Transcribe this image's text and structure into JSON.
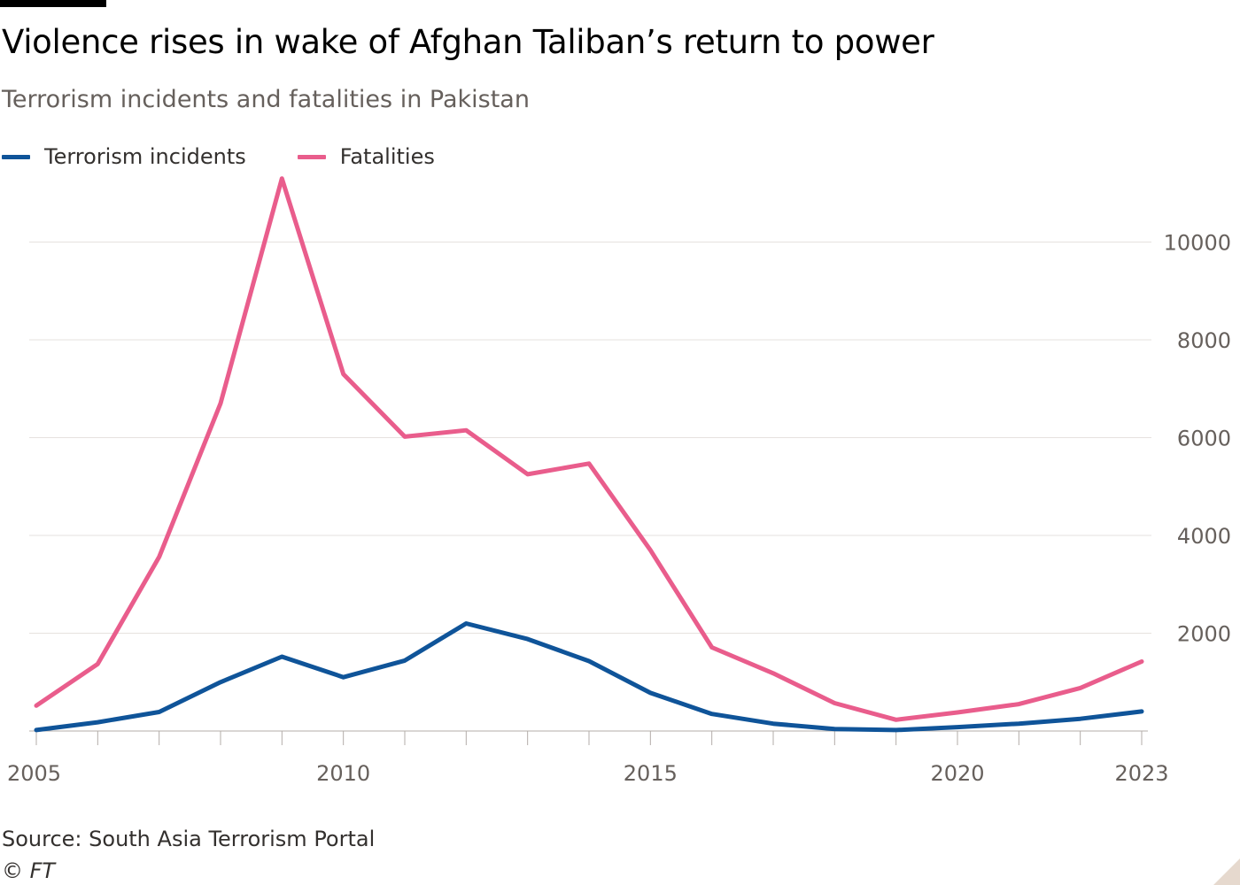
{
  "header": {
    "title": "Violence rises in wake of Afghan Taliban’s return to power",
    "subtitle": "Terrorism incidents and fatalities in Pakistan"
  },
  "legend": [
    {
      "label": "Terrorism incidents",
      "color": "#0f5499"
    },
    {
      "label": "Fatalities",
      "color": "#e95d8c"
    }
  ],
  "footer": {
    "source": "Source: South Asia Terrorism Portal",
    "credit": "© FT"
  },
  "chart_data": {
    "type": "line",
    "title": "Violence rises in wake of Afghan Taliban’s return to power",
    "subtitle": "Terrorism incidents and fatalities in Pakistan",
    "x": [
      2005,
      2006,
      2007,
      2008,
      2009,
      2010,
      2011,
      2012,
      2013,
      2014,
      2015,
      2016,
      2017,
      2018,
      2019,
      2020,
      2021,
      2022,
      2023
    ],
    "series": [
      {
        "name": "Terrorism incidents",
        "color": "#0f5499",
        "values": [
          20,
          180,
          390,
          1000,
          1520,
          1100,
          1440,
          2200,
          1880,
          1430,
          780,
          350,
          150,
          40,
          20,
          80,
          150,
          250,
          400
        ]
      },
      {
        "name": "Fatalities",
        "color": "#e95d8c",
        "values": [
          520,
          1370,
          3560,
          6700,
          11300,
          7300,
          6020,
          6150,
          5250,
          5470,
          3700,
          1710,
          1180,
          570,
          230,
          380,
          550,
          880,
          1420
        ]
      }
    ],
    "x_tick_labels": [
      "2005",
      "2010",
      "2015",
      "2020",
      "2023"
    ],
    "x_tick_values": [
      2005,
      2010,
      2015,
      2020,
      2023
    ],
    "y_tick_labels": [
      "2000",
      "4000",
      "6000",
      "8000",
      "10000"
    ],
    "y_tick_values": [
      2000,
      4000,
      6000,
      8000,
      10000
    ],
    "xlim": [
      2005,
      2023
    ],
    "ylim": [
      0,
      11500
    ],
    "y_axis_side": "right",
    "grid": "horizontal",
    "legend_position": "top-left",
    "colors": {
      "grid": "#e6e2df",
      "axis": "#b3ada9",
      "tick_text": "#66605c"
    }
  }
}
